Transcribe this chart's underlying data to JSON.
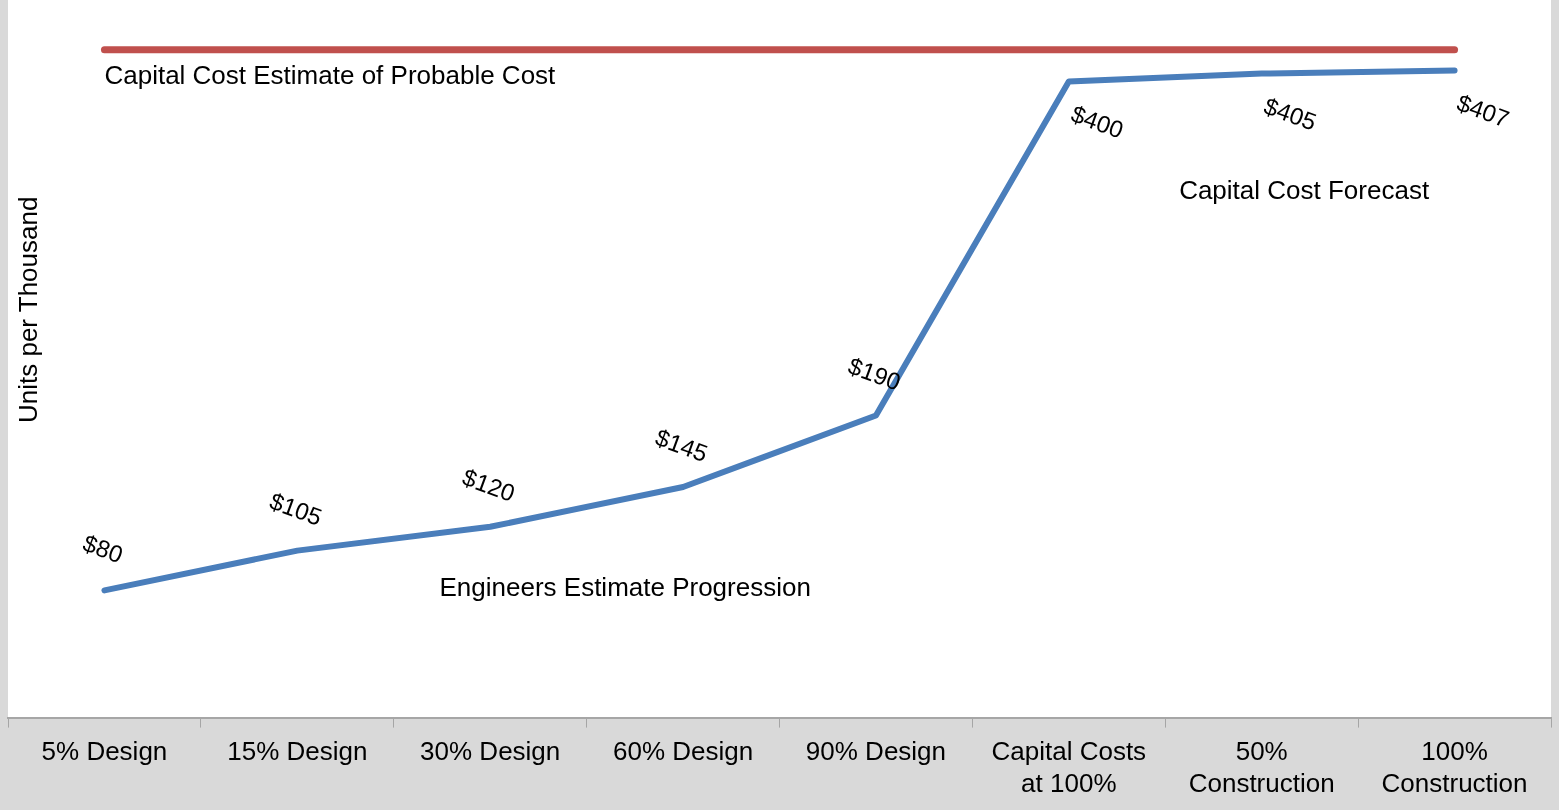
{
  "chart_data": {
    "type": "line",
    "ylabel": "Units per Thousand",
    "categories": [
      "5% Design",
      "15% Design",
      "30% Design",
      "60% Design",
      "90% Design",
      "Capital Costs at 100%",
      "50% Construction",
      "100% Construction"
    ],
    "series": [
      {
        "color": "#4a7ebb",
        "values": [
          80,
          105,
          120,
          145,
          190,
          400,
          405,
          407
        ],
        "value_labels": [
          "$80",
          "$105",
          "$120",
          "$145",
          "$190",
          "$400",
          "$405",
          "$407"
        ]
      }
    ],
    "ylim": [
      0,
      450
    ],
    "tick_labels": "x",
    "grid": false,
    "legend": false,
    "marker": "none",
    "line_style": "solid",
    "ref_lines": [
      {
        "axis": "y",
        "value": 420,
        "label": "Capital Cost Estimate of Probable Cost",
        "color": "#c0504d"
      }
    ],
    "annotations": [
      "Engineers Estimate Progression",
      "Capital Cost Forecast"
    ]
  }
}
